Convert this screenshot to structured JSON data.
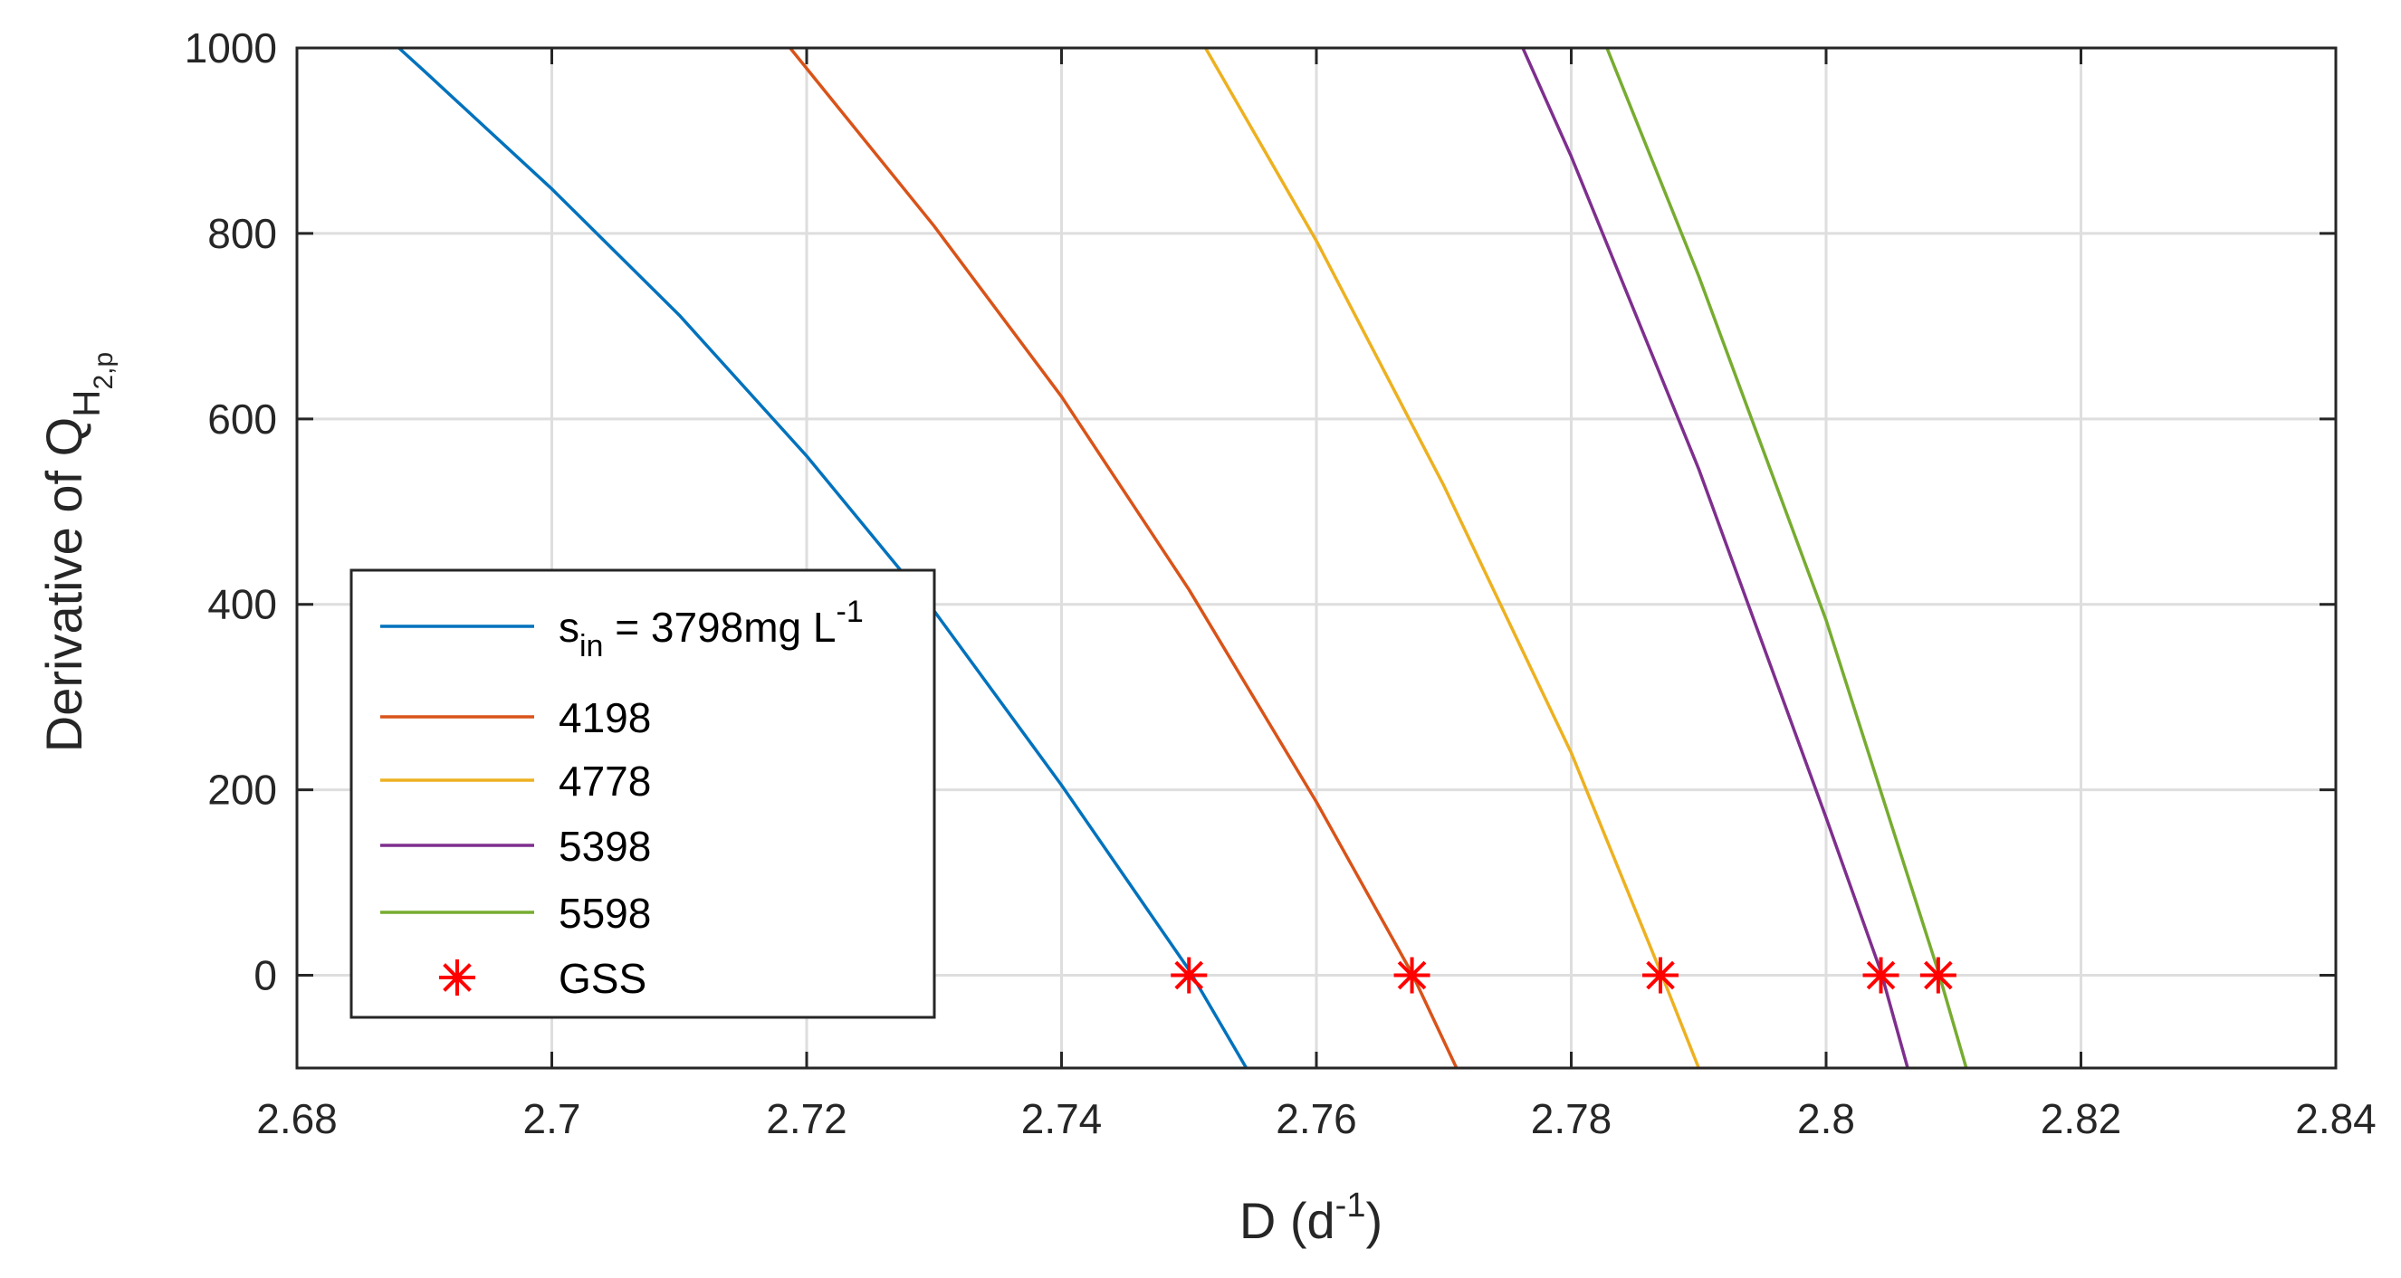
{
  "chart_data": {
    "type": "line",
    "title": "",
    "xlabel": "D (d^-1)",
    "xlabel_parts": {
      "base": "D (d",
      "sup": "-1",
      "close": ")"
    },
    "ylabel": "Derivative of Q_H2,p",
    "ylabel_parts": {
      "base": "Derivative of Q",
      "sub": "H",
      "subsub": "2,p"
    },
    "xlim": [
      2.68,
      2.84
    ],
    "ylim": [
      -100,
      1000
    ],
    "xticks": [
      2.68,
      2.7,
      2.72,
      2.74,
      2.76,
      2.78,
      2.8,
      2.82,
      2.84
    ],
    "xtick_labels": [
      "2.68",
      "2.7",
      "2.72",
      "2.74",
      "2.76",
      "2.78",
      "2.8",
      "2.82",
      "2.84"
    ],
    "yticks": [
      0,
      200,
      400,
      600,
      800,
      1000
    ],
    "ytick_labels": [
      "0",
      "200",
      "400",
      "600",
      "800",
      "1000"
    ],
    "grid": true,
    "legend_position": "lower-left",
    "series": [
      {
        "name": "s_in = 3798mg L^-1",
        "legend_parts": {
          "base": "s",
          "sub": "in",
          "mid": " = 3798mg L",
          "sup": "-1"
        },
        "color": "#0072BD",
        "x": [
          2.688,
          2.69,
          2.7,
          2.71,
          2.72,
          2.73,
          2.74,
          2.75,
          2.7545
        ],
        "y": [
          1000,
          975,
          848,
          712,
          560,
          393,
          205,
          6,
          -100
        ]
      },
      {
        "name": "4198",
        "color": "#D95319",
        "x": [
          2.7187,
          2.73,
          2.74,
          2.75,
          2.76,
          2.7675,
          2.771
        ],
        "y": [
          1000,
          808,
          624,
          416,
          187,
          2,
          -100
        ]
      },
      {
        "name": "4778",
        "color": "#EDB120",
        "x": [
          2.7513,
          2.76,
          2.77,
          2.78,
          2.787,
          2.79
        ],
        "y": [
          1000,
          792,
          528,
          240,
          4,
          -100
        ]
      },
      {
        "name": "5398",
        "color": "#7E2F8E",
        "x": [
          2.7762,
          2.78,
          2.79,
          2.8,
          2.8043,
          2.8064
        ],
        "y": [
          1000,
          883,
          546,
          170,
          4,
          -100
        ]
      },
      {
        "name": "5598",
        "color": "#77AC30",
        "x": [
          2.7828,
          2.79,
          2.8,
          2.8088,
          2.811
        ],
        "y": [
          1000,
          754,
          383,
          4,
          -100
        ]
      }
    ],
    "markers": {
      "name": "GSS",
      "color": "#FF0000",
      "symbol": "asterisk",
      "x": [
        2.75,
        2.7675,
        2.787,
        2.8043,
        2.8088
      ],
      "y": [
        0,
        0,
        0,
        0,
        0
      ]
    }
  }
}
